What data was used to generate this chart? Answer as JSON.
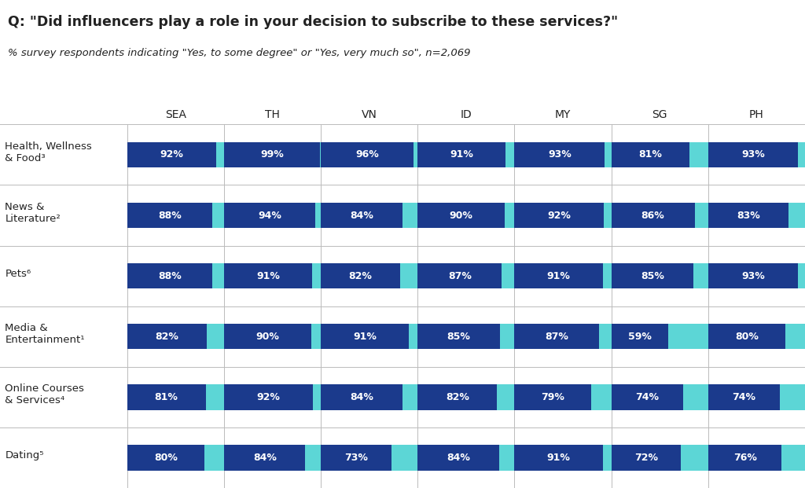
{
  "title": "Q: \"Did influencers play a role in your decision to subscribe to these services?\"",
  "subtitle": "% survey respondents indicating \"Yes, to some degree\" or \"Yes, very much so\", n=2,069",
  "columns": [
    "SEA",
    "TH",
    "VN",
    "ID",
    "MY",
    "SG",
    "PH"
  ],
  "rows": [
    "Health, Wellness\n& Food³",
    "News &\nLiterature²",
    "Pets⁶",
    "Media &\nEntertainment¹",
    "Online Courses\n& Services⁴",
    "Dating⁵"
  ],
  "values": [
    [
      92,
      99,
      96,
      91,
      93,
      81,
      93
    ],
    [
      88,
      94,
      84,
      90,
      92,
      86,
      83
    ],
    [
      88,
      91,
      82,
      87,
      91,
      85,
      93
    ],
    [
      82,
      90,
      91,
      85,
      87,
      59,
      80
    ],
    [
      81,
      92,
      84,
      82,
      79,
      74,
      74
    ],
    [
      80,
      84,
      73,
      84,
      91,
      72,
      76
    ]
  ],
  "bar_max": 100,
  "dark_blue": "#1b3a8c",
  "cyan": "#5cd6d6",
  "bg_color": "#ffffff",
  "grid_line_color": "#bbbbbb",
  "text_color": "#222222",
  "title_fontsize": 12.5,
  "subtitle_fontsize": 9.5,
  "label_fontsize": 9.5,
  "value_fontsize": 9.0,
  "col_header_fontsize": 10
}
